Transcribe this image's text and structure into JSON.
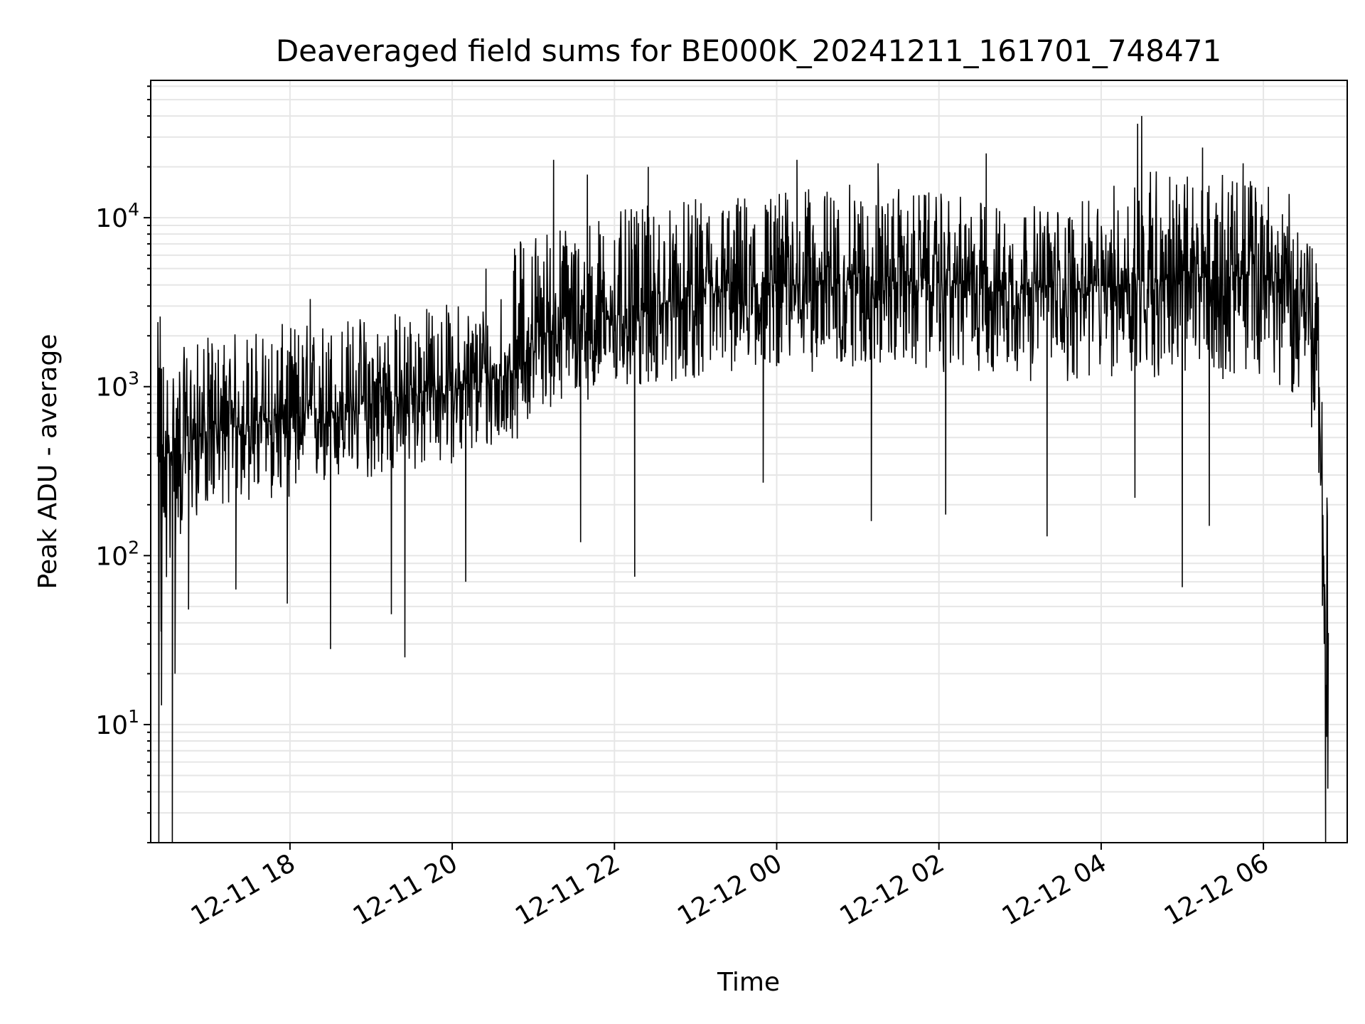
{
  "chart_data": {
    "type": "line",
    "title": "Deaveraged field sums for BE000K_20241211_161701_748471",
    "xlabel": "Time",
    "ylabel": "Peak ADU - average",
    "y_scale": "log",
    "ylim": [
      2,
      65000
    ],
    "xlim": [
      "2024-12-11 16:17",
      "2024-12-12 07:02"
    ],
    "grid": "major and minor",
    "line_color": "#000000",
    "x_ticks": [
      "2024-12-11 18:00",
      "2024-12-11 20:00",
      "2024-12-11 22:00",
      "2024-12-12 00:00",
      "2024-12-12 02:00",
      "2024-12-12 04:00",
      "2024-12-12 06:00"
    ],
    "x_tick_labels": [
      "12-11 18",
      "12-11 20",
      "12-11 22",
      "12-12 00",
      "12-12 02",
      "12-12 04",
      "12-12 06"
    ],
    "y_ticks": [
      10,
      100,
      1000,
      10000
    ],
    "y_tick_labels": [
      {
        "base": "10",
        "exp": "1"
      },
      {
        "base": "10",
        "exp": "2"
      },
      {
        "base": "10",
        "exp": "3"
      },
      {
        "base": "10",
        "exp": "4"
      }
    ],
    "series": [
      {
        "x": [
          "2024-12-11 16:22",
          "2024-12-11 16:30",
          "2024-12-11 16:45",
          "2024-12-11 17:00",
          "2024-12-11 17:30",
          "2024-12-11 18:00",
          "2024-12-11 18:30",
          "2024-12-11 19:00",
          "2024-12-11 19:30",
          "2024-12-11 20:00",
          "2024-12-11 20:30",
          "2024-12-11 20:50",
          "2024-12-11 21:00",
          "2024-12-11 21:30",
          "2024-12-11 22:00",
          "2024-12-11 22:30",
          "2024-12-11 23:00",
          "2024-12-11 23:30",
          "2024-12-12 00:00",
          "2024-12-12 00:30",
          "2024-12-12 01:00",
          "2024-12-12 01:30",
          "2024-12-12 02:00",
          "2024-12-12 02:30",
          "2024-12-12 03:00",
          "2024-12-12 03:30",
          "2024-12-12 04:00",
          "2024-12-12 04:30",
          "2024-12-12 05:00",
          "2024-12-12 05:30",
          "2024-12-12 06:00",
          "2024-12-12 06:30",
          "2024-12-12 06:40",
          "2024-12-12 06:45",
          "2024-12-12 06:48"
        ],
        "typical": [
          300,
          400,
          500,
          550,
          600,
          650,
          700,
          800,
          900,
          1000,
          1100,
          1300,
          2000,
          2300,
          2600,
          3000,
          3300,
          3700,
          4000,
          4200,
          4300,
          4200,
          4100,
          4000,
          3900,
          3800,
          3800,
          4300,
          4300,
          4500,
          4500,
          3500,
          1500,
          100,
          3
        ],
        "low": [
          5,
          80,
          150,
          200,
          200,
          220,
          250,
          280,
          300,
          350,
          400,
          500,
          700,
          800,
          900,
          1000,
          1100,
          1200,
          1300,
          1200,
          1300,
          1300,
          1200,
          1200,
          1100,
          1000,
          1100,
          1100,
          1100,
          1100,
          1200,
          800,
          400,
          20,
          2
        ],
        "high": [
          2500,
          1500,
          1800,
          2000,
          2200,
          2400,
          2600,
          2800,
          3000,
          3200,
          3400,
          8000,
          9000,
          10000,
          11000,
          12000,
          13000,
          14000,
          15000,
          15000,
          16000,
          15000,
          14000,
          13000,
          12000,
          12000,
          13000,
          25000,
          18000,
          18000,
          18000,
          12000,
          5000,
          500,
          300
        ],
        "spikes_low": [
          {
            "x": "2024-12-11 16:23",
            "y": 2
          },
          {
            "x": "2024-12-11 16:25",
            "y": 13
          },
          {
            "x": "2024-12-11 16:33",
            "y": 2
          },
          {
            "x": "2024-12-11 16:35",
            "y": 20
          },
          {
            "x": "2024-12-11 16:45",
            "y": 48
          },
          {
            "x": "2024-12-11 17:20",
            "y": 63
          },
          {
            "x": "2024-12-11 17:58",
            "y": 52
          },
          {
            "x": "2024-12-11 18:30",
            "y": 28
          },
          {
            "x": "2024-12-11 19:15",
            "y": 45
          },
          {
            "x": "2024-12-11 19:25",
            "y": 25
          },
          {
            "x": "2024-12-11 20:10",
            "y": 70
          },
          {
            "x": "2024-12-11 21:35",
            "y": 120
          },
          {
            "x": "2024-12-11 22:15",
            "y": 75
          },
          {
            "x": "2024-12-11 23:50",
            "y": 270
          },
          {
            "x": "2024-12-12 01:10",
            "y": 160
          },
          {
            "x": "2024-12-12 02:05",
            "y": 175
          },
          {
            "x": "2024-12-12 03:20",
            "y": 130
          },
          {
            "x": "2024-12-12 04:25",
            "y": 220
          },
          {
            "x": "2024-12-12 05:00",
            "y": 65
          },
          {
            "x": "2024-12-12 05:20",
            "y": 150
          },
          {
            "x": "2024-12-12 06:46",
            "y": 2
          }
        ],
        "spikes_high": [
          {
            "x": "2024-12-11 16:24",
            "y": 2600
          },
          {
            "x": "2024-12-11 18:15",
            "y": 3300
          },
          {
            "x": "2024-12-11 20:25",
            "y": 5000
          },
          {
            "x": "2024-12-11 21:15",
            "y": 22000
          },
          {
            "x": "2024-12-11 21:40",
            "y": 18000
          },
          {
            "x": "2024-12-11 22:25",
            "y": 20000
          },
          {
            "x": "2024-12-12 00:15",
            "y": 22000
          },
          {
            "x": "2024-12-12 01:15",
            "y": 21000
          },
          {
            "x": "2024-12-12 02:35",
            "y": 24000
          },
          {
            "x": "2024-12-12 04:27",
            "y": 36000
          },
          {
            "x": "2024-12-12 04:30",
            "y": 40000
          },
          {
            "x": "2024-12-12 05:15",
            "y": 26000
          },
          {
            "x": "2024-12-12 05:45",
            "y": 21000
          }
        ]
      }
    ]
  }
}
